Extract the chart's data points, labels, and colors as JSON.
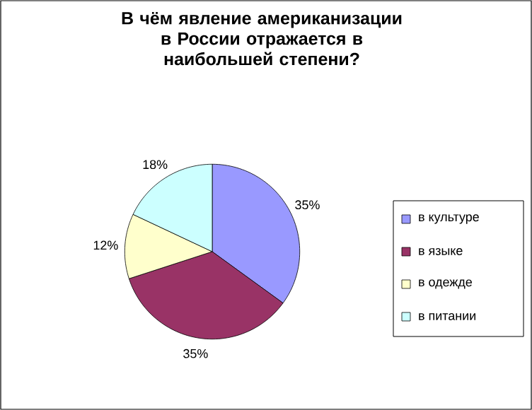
{
  "chart_data": {
    "type": "pie",
    "title": "В чём явление американизации в России отражается в наибольшей степени?",
    "categories": [
      "в культуре",
      "в языке",
      "в одежде",
      "в питании"
    ],
    "values": [
      35,
      35,
      12,
      18
    ],
    "value_labels": [
      "35%",
      "35%",
      "12%",
      "18%"
    ],
    "colors": [
      "#9999ff",
      "#993366",
      "#ffffcc",
      "#ccffff"
    ],
    "legend": "right"
  }
}
